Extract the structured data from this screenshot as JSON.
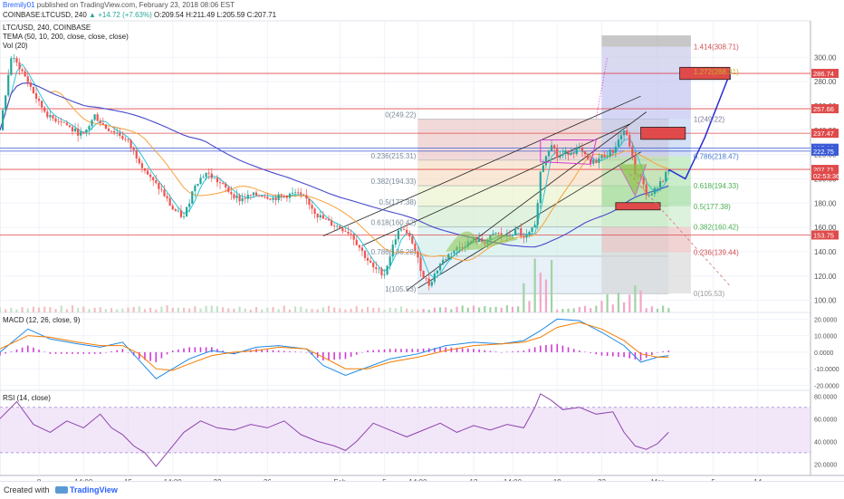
{
  "header": {
    "user": "Bremily01",
    "published": " published on TradingView.com, February 23, 2018 08:06 EST",
    "symbol_line": "COINBASE:LTCUSD, 240",
    "change": "▲ +14.72 (+7.63%)",
    "ohlc": "O:209.54 H:211.49 L:205.59 C:207.71"
  },
  "legend": {
    "title": "LTC/USD, 240, COINBASE",
    "tema": "TEMA (50, 10, 200, close, close, close)",
    "vol": "Vol (20)"
  },
  "footer": {
    "created_with": "Created with",
    "brand": "TradingView"
  },
  "colors": {
    "up": "#26a69a",
    "down": "#ef5350",
    "tema_fast": "#26c6da",
    "tema_mid": "#f6a23c",
    "tema_slow": "#4a4acd",
    "macd": "#1e88e5",
    "signal": "#f57c00",
    "rsi": "#8e44ad"
  },
  "chart_data": [
    {
      "type": "candlestick",
      "title": "LTC/USD, 240, COINBASE",
      "ylim": [
        90,
        330
      ],
      "x_ticks": [
        "8",
        "14:00",
        "15",
        "14:00",
        "22",
        "26",
        "Feb",
        "5",
        "14:00",
        "12",
        "14:00",
        "19",
        "23",
        "Mar",
        "5",
        "14"
      ],
      "y_ticks": [
        100,
        120,
        140,
        160,
        180,
        200,
        220,
        240,
        260,
        280,
        300
      ],
      "price_labels": [
        {
          "label": "286.74",
          "value": 286.74
        },
        {
          "label": "257.66",
          "value": 257.66
        },
        {
          "label": "237.47",
          "value": 237.47
        },
        {
          "label": "225.16",
          "value": 225.16
        },
        {
          "label": "222.75",
          "value": 222.75
        },
        {
          "label": "207.71",
          "value": 207.71
        },
        {
          "label": "02:53:36",
          "value": 202.5
        },
        {
          "label": "153.75",
          "value": 153.75
        }
      ],
      "fib_retracement": [
        {
          "label": "0(249.22)",
          "value": 249.22
        },
        {
          "label": "0.236(215.31)",
          "value": 215.31
        },
        {
          "label": "0.382(194.33)",
          "value": 194.33
        },
        {
          "label": "0.5(177.38)",
          "value": 177.38
        },
        {
          "label": "0.618(160.42)",
          "value": 160.42
        },
        {
          "label": "0.786(136.28)",
          "value": 136.28
        },
        {
          "label": "1(105.53)",
          "value": 105.53
        }
      ],
      "fib_extension": [
        {
          "label": "1.414(308.71)",
          "value": 308.71
        },
        {
          "label": "1.272(288.31)",
          "value": 288.31
        },
        {
          "label": "1(249.22)",
          "value": 249.22
        },
        {
          "label": "0.786(218.47)",
          "value": 218.47
        },
        {
          "label": "0.618(194.33)",
          "value": 194.33
        },
        {
          "label": "0.5(177.38)",
          "value": 177.38
        },
        {
          "label": "0.382(160.42)",
          "value": 160.42
        },
        {
          "label": "0.236(139.44)",
          "value": 139.44
        },
        {
          "label": "0(105.53)",
          "value": 105.53
        }
      ],
      "horizontal_levels": [
        286.74,
        257.66,
        237.47,
        225.16,
        222.75,
        207.71,
        153.75
      ],
      "close_path": [
        [
          0,
          240
        ],
        [
          4,
          300
        ],
        [
          7,
          292
        ],
        [
          10,
          280
        ],
        [
          14,
          262
        ],
        [
          18,
          250
        ],
        [
          22,
          248
        ],
        [
          26,
          240
        ],
        [
          30,
          236
        ],
        [
          34,
          252
        ],
        [
          38,
          242
        ],
        [
          42,
          238
        ],
        [
          46,
          230
        ],
        [
          50,
          215
        ],
        [
          54,
          200
        ],
        [
          58,
          190
        ],
        [
          62,
          175
        ],
        [
          66,
          168
        ],
        [
          70,
          196
        ],
        [
          74,
          205
        ],
        [
          78,
          198
        ],
        [
          82,
          190
        ],
        [
          86,
          183
        ],
        [
          90,
          186
        ],
        [
          94,
          187
        ],
        [
          98,
          184
        ],
        [
          102,
          186
        ],
        [
          106,
          188
        ],
        [
          110,
          183
        ],
        [
          114,
          170
        ],
        [
          118,
          164
        ],
        [
          122,
          160
        ],
        [
          126,
          155
        ],
        [
          130,
          140
        ],
        [
          134,
          126
        ],
        [
          138,
          122
        ],
        [
          142,
          152
        ],
        [
          144,
          160
        ],
        [
          146,
          154
        ],
        [
          148,
          148
        ],
        [
          150,
          133
        ],
        [
          152,
          120
        ],
        [
          154,
          113
        ],
        [
          158,
          130
        ],
        [
          162,
          140
        ],
        [
          166,
          145
        ],
        [
          170,
          150
        ],
        [
          174,
          148
        ],
        [
          178,
          155
        ],
        [
          182,
          152
        ],
        [
          186,
          158
        ],
        [
          188,
          150
        ],
        [
          192,
          160
        ],
        [
          194,
          205
        ],
        [
          196,
          220
        ],
        [
          198,
          230
        ],
        [
          200,
          218
        ],
        [
          204,
          222
        ],
        [
          208,
          224
        ],
        [
          212,
          212
        ],
        [
          216,
          218
        ],
        [
          220,
          223
        ],
        [
          222,
          232
        ],
        [
          224,
          240
        ],
        [
          226,
          228
        ],
        [
          228,
          205
        ],
        [
          230,
          200
        ],
        [
          232,
          188
        ],
        [
          234,
          186
        ],
        [
          236,
          195
        ],
        [
          238,
          200
        ],
        [
          240,
          207.71
        ]
      ],
      "projection_path": [
        [
          240,
          207.71
        ],
        [
          246,
          200
        ],
        [
          253,
          234
        ],
        [
          262,
          286.74
        ]
      ]
    },
    {
      "type": "line",
      "title": "MACD (12, 26, close, 9)",
      "ylim": [
        -23,
        24
      ],
      "y_ticks": [
        20,
        10,
        0,
        -10,
        -20
      ],
      "y_tick_labels": [
        "20.0000",
        "10.0000",
        "0.0000",
        "-10.0000",
        "-20.0000"
      ],
      "series": [
        {
          "name": "MACD",
          "values": [
            [
              0,
              0
            ],
            [
              10,
              14
            ],
            [
              18,
              8
            ],
            [
              28,
              5
            ],
            [
              36,
              3
            ],
            [
              44,
              6
            ],
            [
              50,
              -5
            ],
            [
              56,
              -16
            ],
            [
              62,
              -10
            ],
            [
              68,
              -4
            ],
            [
              76,
              1
            ],
            [
              84,
              -1
            ],
            [
              92,
              3
            ],
            [
              100,
              4
            ],
            [
              110,
              2
            ],
            [
              116,
              -8
            ],
            [
              124,
              -14
            ],
            [
              132,
              -9
            ],
            [
              140,
              -4
            ],
            [
              150,
              -1
            ],
            [
              160,
              4
            ],
            [
              170,
              6
            ],
            [
              180,
              5
            ],
            [
              188,
              7
            ],
            [
              194,
              13
            ],
            [
              200,
              20
            ],
            [
              208,
              19
            ],
            [
              216,
              12
            ],
            [
              224,
              4
            ],
            [
              230,
              -6
            ],
            [
              236,
              -3
            ],
            [
              240,
              -2
            ]
          ]
        },
        {
          "name": "Signal",
          "values": [
            [
              0,
              2
            ],
            [
              10,
              10
            ],
            [
              18,
              9
            ],
            [
              28,
              6
            ],
            [
              36,
              4
            ],
            [
              44,
              4
            ],
            [
              50,
              -1
            ],
            [
              56,
              -10
            ],
            [
              62,
              -11
            ],
            [
              68,
              -7
            ],
            [
              76,
              -2
            ],
            [
              84,
              0
            ],
            [
              92,
              1
            ],
            [
              100,
              3
            ],
            [
              110,
              2
            ],
            [
              116,
              -3
            ],
            [
              124,
              -10
            ],
            [
              132,
              -10
            ],
            [
              140,
              -6
            ],
            [
              150,
              -3
            ],
            [
              160,
              1
            ],
            [
              170,
              4
            ],
            [
              180,
              5
            ],
            [
              188,
              6
            ],
            [
              194,
              9
            ],
            [
              200,
              15
            ],
            [
              208,
              18
            ],
            [
              216,
              14
            ],
            [
              224,
              7
            ],
            [
              230,
              -1
            ],
            [
              236,
              -3
            ],
            [
              240,
              -3
            ]
          ]
        }
      ]
    },
    {
      "type": "line",
      "title": "RSI (14, close)",
      "ylim": [
        10,
        85
      ],
      "y_ticks": [
        80,
        60,
        40,
        20
      ],
      "y_tick_labels": [
        "80.0000",
        "60.0000",
        "40.0000",
        "20.0000"
      ],
      "band": [
        30,
        70
      ],
      "series": [
        {
          "name": "RSI",
          "values": [
            [
              0,
              60
            ],
            [
              6,
              75
            ],
            [
              12,
              55
            ],
            [
              18,
              48
            ],
            [
              24,
              58
            ],
            [
              30,
              52
            ],
            [
              36,
              64
            ],
            [
              40,
              52
            ],
            [
              44,
              46
            ],
            [
              48,
              36
            ],
            [
              52,
              30
            ],
            [
              56,
              18
            ],
            [
              60,
              30
            ],
            [
              66,
              48
            ],
            [
              72,
              58
            ],
            [
              78,
              52
            ],
            [
              84,
              50
            ],
            [
              90,
              55
            ],
            [
              96,
              52
            ],
            [
              102,
              58
            ],
            [
              108,
              46
            ],
            [
              114,
              40
            ],
            [
              120,
              36
            ],
            [
              124,
              32
            ],
            [
              128,
              40
            ],
            [
              134,
              56
            ],
            [
              140,
              50
            ],
            [
              146,
              44
            ],
            [
              152,
              50
            ],
            [
              158,
              56
            ],
            [
              164,
              48
            ],
            [
              170,
              54
            ],
            [
              176,
              50
            ],
            [
              182,
              55
            ],
            [
              188,
              52
            ],
            [
              192,
              70
            ],
            [
              194,
              82
            ],
            [
              198,
              76
            ],
            [
              202,
              68
            ],
            [
              208,
              70
            ],
            [
              214,
              64
            ],
            [
              220,
              66
            ],
            [
              224,
              48
            ],
            [
              228,
              36
            ],
            [
              232,
              33
            ],
            [
              236,
              38
            ],
            [
              240,
              48
            ]
          ]
        }
      ]
    }
  ]
}
